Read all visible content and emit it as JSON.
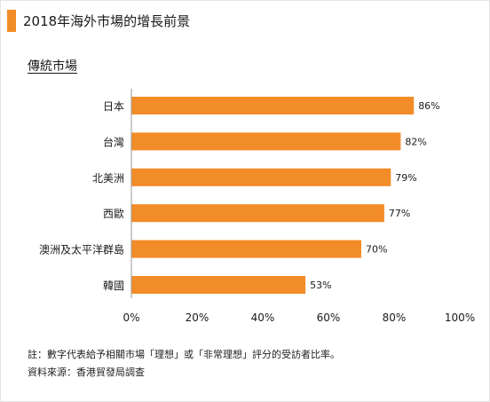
{
  "header": {
    "title": "2018年海外市場的增長前景",
    "subtitle": "傳統市場"
  },
  "chart_data": {
    "type": "bar",
    "orientation": "horizontal",
    "categories": [
      "日本",
      "台灣",
      "北美洲",
      "西歐",
      "澳洲及太平洋群島",
      "韓國"
    ],
    "values": [
      86,
      82,
      79,
      77,
      70,
      53
    ],
    "value_labels": [
      "86%",
      "82%",
      "79%",
      "77%",
      "70%",
      "53%"
    ],
    "xlim": [
      0,
      100
    ],
    "xticks": [
      0,
      20,
      40,
      60,
      80,
      100
    ],
    "xtick_labels": [
      "0%",
      "20%",
      "40%",
      "60%",
      "80%",
      "100%"
    ],
    "grid": false,
    "bar_color": "#f28c28",
    "title": "2018年海外市場的增長前景",
    "xlabel": "",
    "ylabel": ""
  },
  "notes": {
    "note": "註：數字代表給予相關市場「理想」或「非常理想」評分的受訪者比率。",
    "source": "資料來源：香港貿發局調查"
  },
  "colors": {
    "accent": "#f28c28",
    "axis": "#999999"
  }
}
